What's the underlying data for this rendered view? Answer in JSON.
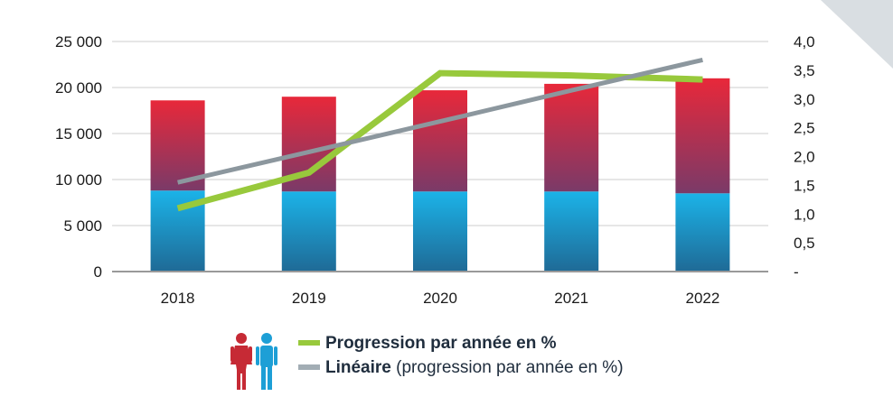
{
  "chart_data": {
    "type": "bar",
    "categories": [
      "2018",
      "2019",
      "2020",
      "2021",
      "2022"
    ],
    "series": [
      {
        "name": "",
        "kind": "stacked-bar-bottom",
        "axis": "left",
        "values": [
          8800,
          8700,
          8700,
          8700,
          8500
        ]
      },
      {
        "name": "",
        "kind": "stacked-bar-top",
        "axis": "left",
        "values": [
          9800,
          10300,
          11000,
          11700,
          12500
        ]
      },
      {
        "name": "Progression par année en %",
        "kind": "line",
        "axis": "right",
        "values": [
          1.1,
          1.72,
          3.45,
          3.41,
          3.34
        ]
      },
      {
        "name": "Linéaire (progression par année en %)",
        "kind": "line",
        "axis": "right",
        "values": [
          1.55,
          2.08,
          2.61,
          3.15,
          3.68
        ]
      }
    ],
    "y_left": {
      "ylim": [
        0,
        25000
      ],
      "ticks": [
        0,
        5000,
        10000,
        15000,
        20000,
        25000
      ],
      "tick_labels": [
        "0",
        "5 000",
        "10 000",
        "15 000",
        "20 000",
        "25 000"
      ]
    },
    "y_right": {
      "ylim": [
        0,
        4
      ],
      "ticks": [
        0,
        0.5,
        1,
        1.5,
        2,
        2.5,
        3,
        3.5,
        4
      ],
      "tick_labels": [
        "-",
        "0,5",
        "1,0",
        "1,5",
        "2,0",
        "2,5",
        "3,0",
        "3,5",
        "4,0"
      ]
    },
    "grid": true,
    "legend_position": "bottom",
    "colors": {
      "bar_bottom_top": "#1bb3e8",
      "bar_bottom_bottom": "#1f6a96",
      "bar_top_top": "#e8283a",
      "bar_top_bottom": "#7a3a68",
      "progression_line": "#98c93c",
      "linear_line": "#8c979e",
      "gridline": "#cccccc",
      "axis": "#999999",
      "corner": "#d9dee2",
      "icon_woman": "#c62a35",
      "icon_man": "#1d9fd6"
    }
  },
  "legend": {
    "items": [
      {
        "bold": "Progression par année en %",
        "rest": "",
        "color": "#98c93c"
      },
      {
        "bold": "Linéaire",
        "rest": " (progression par année en %)",
        "color": "#a2adb4"
      }
    ],
    "icons": [
      "woman-icon",
      "man-icon"
    ]
  }
}
